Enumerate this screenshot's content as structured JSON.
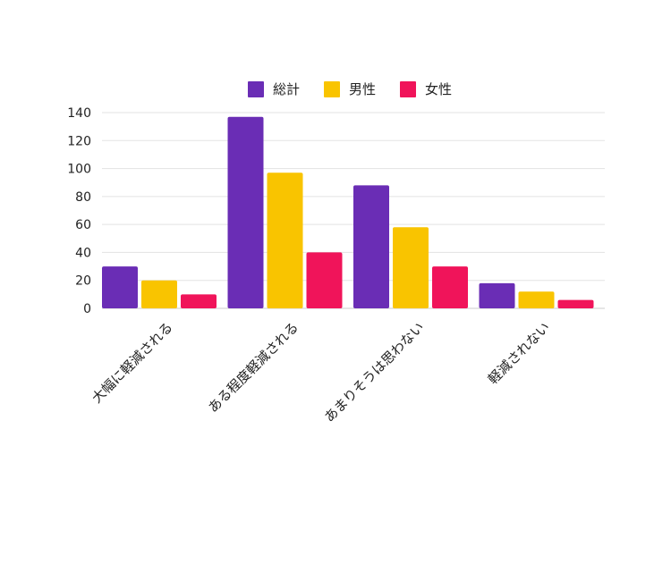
{
  "chart_data": {
    "type": "bar",
    "categories": [
      "大幅に軽減される",
      "ある程度軽減される",
      "あまりそうは思わない",
      "軽減されない"
    ],
    "series": [
      {
        "name": "総計",
        "color": "#6a2db5",
        "values": [
          30,
          137,
          88,
          18
        ]
      },
      {
        "name": "男性",
        "color": "#f9c400",
        "values": [
          20,
          97,
          58,
          12
        ]
      },
      {
        "name": "女性",
        "color": "#f0145a",
        "values": [
          10,
          40,
          30,
          6
        ]
      }
    ],
    "ylim": [
      0,
      140
    ],
    "yticks": [
      0,
      20,
      40,
      60,
      80,
      100,
      120,
      140
    ],
    "grid": true,
    "legend_position": "top-center",
    "title": "",
    "xlabel": "",
    "ylabel": ""
  }
}
